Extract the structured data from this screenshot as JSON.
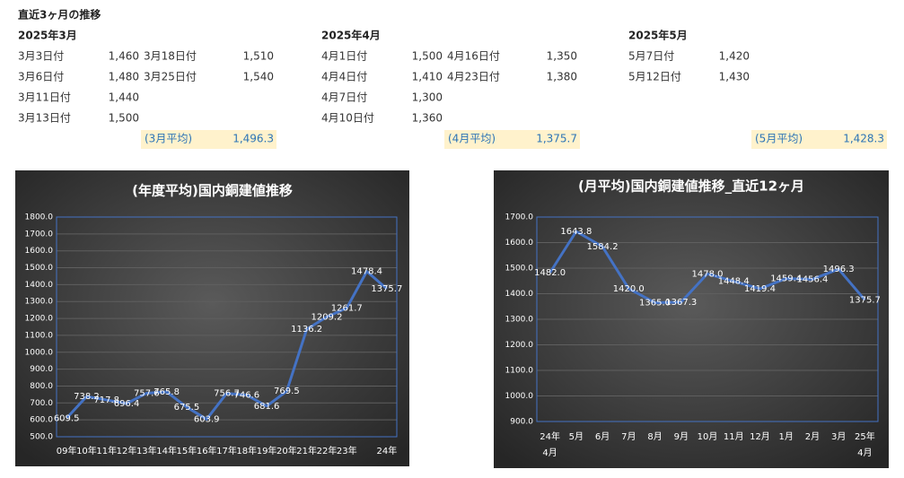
{
  "header": {
    "title": "直近3ヶ月の推移"
  },
  "months": [
    {
      "label": "2025年3月",
      "entries": [
        {
          "date": "3月3日付",
          "value": "1,460"
        },
        {
          "date": "3月6日付",
          "value": "1,480"
        },
        {
          "date": "3月11日付",
          "value": "1,440"
        },
        {
          "date": "3月13日付",
          "value": "1,500"
        },
        {
          "date": "3月18日付",
          "value": "1,510"
        },
        {
          "date": "3月25日付",
          "value": "1,540"
        }
      ],
      "average_label": "(3月平均)",
      "average": "1,496.3"
    },
    {
      "label": "2025年4月",
      "entries": [
        {
          "date": "4月1日付",
          "value": "1,500"
        },
        {
          "date": "4月4日付",
          "value": "1,410"
        },
        {
          "date": "4月7日付",
          "value": "1,300"
        },
        {
          "date": "4月10日付",
          "value": "1,360"
        },
        {
          "date": "4月16日付",
          "value": "1,350"
        },
        {
          "date": "4月23日付",
          "value": "1,380"
        }
      ],
      "average_label": "(4月平均)",
      "average": "1,375.7"
    },
    {
      "label": "2025年5月",
      "entries": [
        {
          "date": "5月7日付",
          "value": "1,420"
        },
        {
          "date": "5月12日付",
          "value": "1,430"
        }
      ],
      "average_label": "(5月平均)",
      "average": "1,428.3"
    }
  ],
  "chart_data": [
    {
      "type": "line",
      "title": "(年度平均)国内銅建値推移",
      "categories": [
        "09年",
        "10年",
        "11年",
        "12年",
        "13年",
        "14年",
        "15年",
        "16年",
        "17年",
        "18年",
        "19年",
        "20年",
        "21年",
        "22年",
        "23年",
        null,
        "24年"
      ],
      "series": [
        {
          "name": "年度平均",
          "color": "#4472c4",
          "values": [
            609.5,
            738.2,
            717.8,
            696.4,
            757.6,
            765.8,
            675.5,
            603.9,
            756.7,
            746.6,
            681.6,
            769.5,
            1136.2,
            1209.2,
            1261.7,
            1478.4,
            1375.7
          ]
        }
      ],
      "ylim": [
        500,
        1800
      ],
      "yticks": [
        {
          "value": 500,
          "label": "500.0"
        },
        {
          "value": 600,
          "label": "600.0"
        },
        {
          "value": 700,
          "label": "700.0"
        },
        {
          "value": 800,
          "label": "800.0"
        },
        {
          "value": 900,
          "label": "900.0"
        },
        {
          "value": 1000,
          "label": "1000.0"
        },
        {
          "value": 1100,
          "label": "1100.0"
        },
        {
          "value": 1200,
          "label": "1200.0"
        },
        {
          "value": 1300,
          "label": "1300.0"
        },
        {
          "value": 1400,
          "label": "1400.0"
        },
        {
          "value": 1500,
          "label": "1500.0"
        },
        {
          "value": 1600,
          "label": "1600.0"
        },
        {
          "value": 1700,
          "label": "1700.0"
        },
        {
          "value": 1800,
          "label": "1800.0"
        }
      ],
      "grid": true
    },
    {
      "type": "line",
      "title": "(月平均)国内銅建値推移_直近12ヶ月",
      "categories": [
        "24年\n4月",
        "5月",
        "6月",
        "7月",
        "8月",
        "9月",
        "10月",
        "11月",
        "12月",
        "1月",
        "2月",
        "3月",
        "25年\n4月"
      ],
      "series": [
        {
          "name": "月平均",
          "color": "#4472c4",
          "values": [
            1482,
            1643.8,
            1584.2,
            1420,
            1365,
            1367.3,
            1478,
            1448.4,
            1419.4,
            1459.4,
            1456.4,
            1496.3,
            1375.7
          ],
          "value_labels": [
            "1482.0",
            "1643.8",
            "1584.2",
            "1420.0",
            "1365.0",
            "1367.3",
            "1478.0",
            "1448.4",
            "1419.4",
            "1459.4",
            "1456.4",
            "1496.3",
            "1375.7"
          ]
        }
      ],
      "ylim": [
        900,
        1700
      ],
      "yticks": [
        {
          "value": 900,
          "label": "900.0"
        },
        {
          "value": 1000,
          "label": "1000.0"
        },
        {
          "value": 1100,
          "label": "1100.0"
        },
        {
          "value": 1200,
          "label": "1200.0"
        },
        {
          "value": 1300,
          "label": "1300.0"
        },
        {
          "value": 1400,
          "label": "1400.0"
        },
        {
          "value": 1500,
          "label": "1500.0"
        },
        {
          "value": 1600,
          "label": "1600.0"
        },
        {
          "value": 1700,
          "label": "1700.0"
        }
      ],
      "grid": true
    }
  ]
}
